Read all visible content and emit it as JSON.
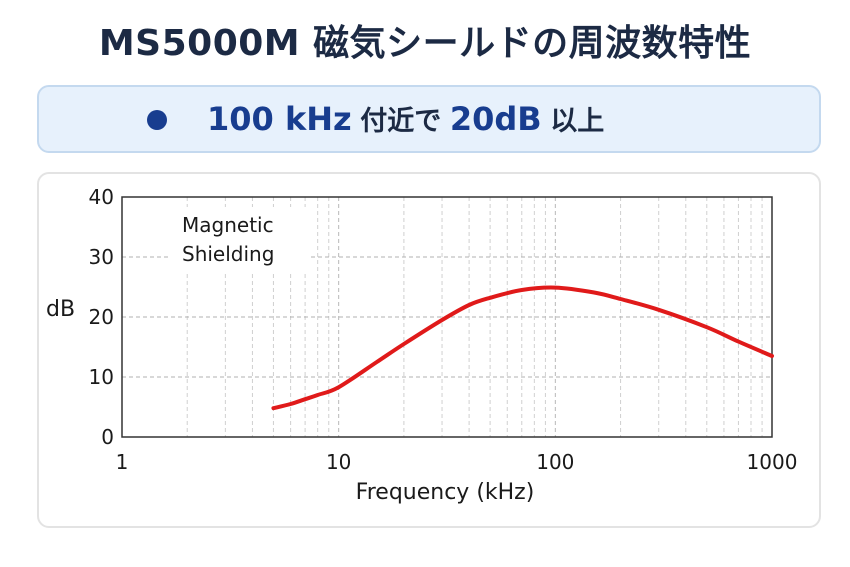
{
  "header": {
    "title": "MS5000M 磁気シールドの周波数特性"
  },
  "banner": {
    "value_freq": "100 kHz",
    "text_near": "付近で",
    "value_db": "20dB",
    "text_above": "以上"
  },
  "colors": {
    "curve": "#e01a1a",
    "banner_accent": "#183d8f",
    "title": "#1c2a44"
  },
  "chart_data": {
    "type": "line",
    "x_scale": "log",
    "xlim": [
      1,
      1000
    ],
    "ylim": [
      0,
      40
    ],
    "x_ticks": [
      1,
      10,
      100,
      1000
    ],
    "y_ticks": [
      0,
      10,
      20,
      30,
      40
    ],
    "xlabel": "Frequency (kHz)",
    "ylabel": "dB",
    "grid": true,
    "series": [
      {
        "name": "Magnetic Shielding",
        "x": [
          5,
          6,
          7,
          8,
          10,
          15,
          20,
          30,
          40,
          50,
          70,
          100,
          150,
          200,
          300,
          500,
          700,
          1000
        ],
        "y": [
          4.8,
          5.5,
          6.3,
          7.0,
          8.3,
          12.5,
          15.5,
          19.5,
          22.0,
          23.2,
          24.5,
          24.9,
          24.1,
          23.0,
          21.2,
          18.3,
          15.9,
          13.5
        ]
      }
    ]
  }
}
